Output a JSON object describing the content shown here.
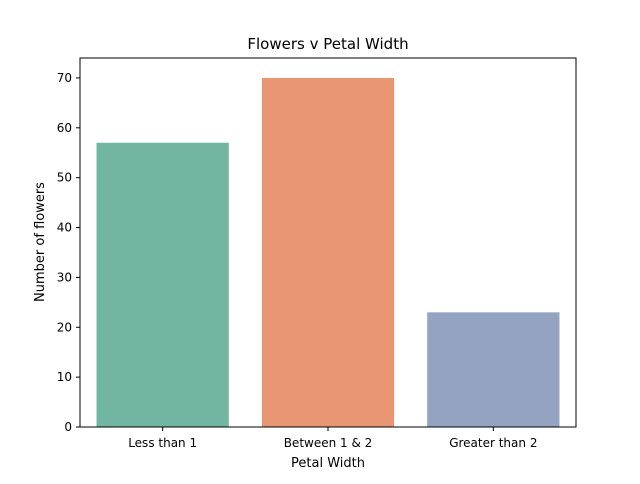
{
  "chart_data": {
    "type": "bar",
    "title": "Flowers v Petal Width",
    "xlabel": "Petal Width",
    "ylabel": "Number of flowers",
    "categories": [
      "Less than 1",
      "Between 1 & 2",
      "Greater than 2"
    ],
    "values": [
      57,
      70,
      23
    ],
    "colors": [
      "#72b6a1",
      "#e99675",
      "#95a3c3"
    ],
    "ylim": [
      0,
      74
    ],
    "yticks": [
      0,
      10,
      20,
      30,
      40,
      50,
      60,
      70
    ],
    "grid": false,
    "legend": "none"
  }
}
